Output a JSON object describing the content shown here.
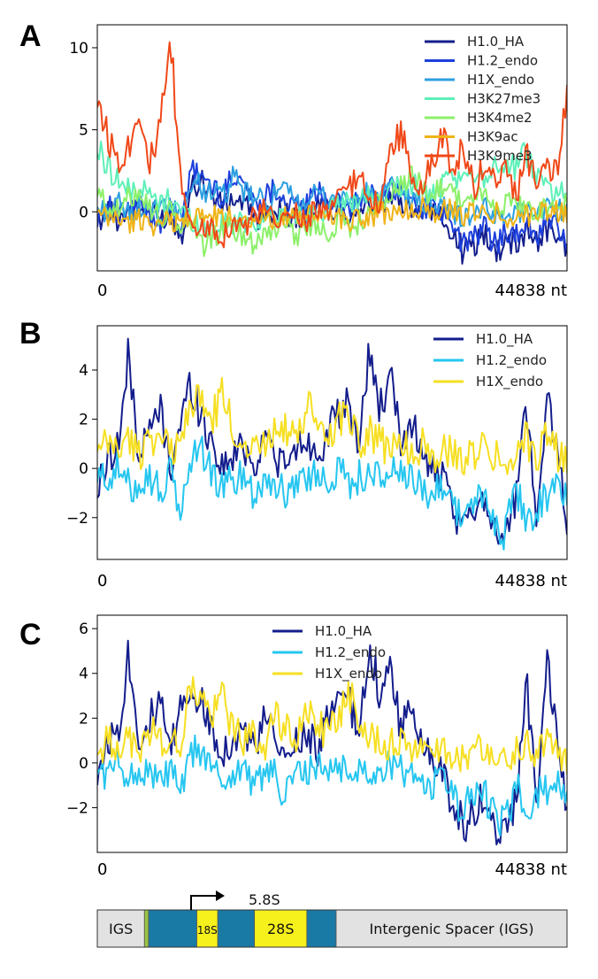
{
  "panels": [
    {
      "letter": "A",
      "chart_data": {
        "type": "line",
        "x_start_label": "0",
        "x_end_label": "44838 nt",
        "xlim": [
          0,
          44838
        ],
        "ylim": [
          -3.6,
          11.4
        ],
        "yticks": [
          0,
          5,
          10
        ],
        "ytick_labels": [
          "0",
          "5",
          "10"
        ],
        "legend_position": "top-right",
        "x": [
          0,
          1000,
          2000,
          3000,
          4000,
          5000,
          6000,
          7000,
          8000,
          9000,
          10000,
          11000,
          12000,
          13000,
          14000,
          15000,
          16000,
          17000,
          18000,
          19000,
          20000,
          21000,
          22000,
          23000,
          24000,
          25000,
          26000,
          27000,
          28000,
          29000,
          30000,
          31000,
          32000,
          33000,
          34000,
          35000,
          36000,
          37000,
          38000,
          39000,
          40000,
          41000,
          42000,
          43000,
          44000,
          44838
        ],
        "series": [
          {
            "name": "H1.0_HA",
            "color": "#131d8c",
            "values": [
              -0.8,
              0.2,
              -0.5,
              0.3,
              0.1,
              0.0,
              -0.4,
              -0.2,
              -1.5,
              1.5,
              2.0,
              1.0,
              0.3,
              0.8,
              0.5,
              -0.3,
              -0.5,
              0.2,
              0.0,
              -0.6,
              -0.3,
              0.4,
              0.2,
              0.1,
              -0.2,
              0.3,
              0.5,
              0.1,
              1.0,
              0.6,
              0.3,
              0.2,
              0.0,
              -0.5,
              -1.5,
              -2.5,
              -2.0,
              -1.2,
              -2.6,
              -1.5,
              -2.0,
              -1.0,
              -1.8,
              -1.0,
              -1.5,
              -2.2
            ]
          },
          {
            "name": "H1.2_endo",
            "color": "#1c3fdc",
            "values": [
              -0.3,
              0.5,
              -0.2,
              0.1,
              0.4,
              -0.3,
              -0.6,
              0.2,
              -1.0,
              2.5,
              2.2,
              1.5,
              0.8,
              2.5,
              1.8,
              0.5,
              1.0,
              1.5,
              0.6,
              0.2,
              0.5,
              1.2,
              0.8,
              0.4,
              0.2,
              0.6,
              1.4,
              0.7,
              1.8,
              1.0,
              0.6,
              0.3,
              0.2,
              -0.2,
              -1.0,
              -2.0,
              -1.5,
              -1.0,
              -2.0,
              -1.0,
              -1.6,
              -0.6,
              -1.5,
              -0.5,
              -1.0,
              -1.8
            ]
          },
          {
            "name": "H1X_endo",
            "color": "#2c9fe0",
            "values": [
              0.2,
              0.0,
              0.5,
              -0.2,
              0.3,
              0.1,
              0.0,
              0.4,
              -0.5,
              1.8,
              1.5,
              1.2,
              0.9,
              2.0,
              1.2,
              0.8,
              0.6,
              1.0,
              1.2,
              0.5,
              0.8,
              1.0,
              0.7,
              0.9,
              0.5,
              0.8,
              1.1,
              0.9,
              1.5,
              0.9,
              0.8,
              0.6,
              0.5,
              0.3,
              0.0,
              -0.5,
              0.0,
              0.2,
              -0.5,
              0.1,
              -0.2,
              0.3,
              0.0,
              0.4,
              0.2,
              0.0
            ]
          },
          {
            "name": "H3K27me3",
            "color": "#5ef0b8",
            "values": [
              3.8,
              2.8,
              2.0,
              1.2,
              1.5,
              1.0,
              0.5,
              0.8,
              0.2,
              -0.5,
              -0.8,
              -1.0,
              -0.6,
              -0.8,
              -0.5,
              -0.7,
              -0.4,
              -0.2,
              -0.5,
              -0.3,
              -0.1,
              0.2,
              0.0,
              0.3,
              0.5,
              0.8,
              1.0,
              0.6,
              1.2,
              1.5,
              1.8,
              1.2,
              1.0,
              1.5,
              2.0,
              1.8,
              2.5,
              2.2,
              3.0,
              2.6,
              2.8,
              3.5,
              2.5,
              1.5,
              1.0,
              1.8
            ]
          },
          {
            "name": "H3K4me2",
            "color": "#8cf06a",
            "values": [
              1.0,
              0.5,
              0.0,
              0.8,
              1.5,
              0.3,
              -0.5,
              0.0,
              -1.0,
              -0.5,
              -2.0,
              -1.5,
              -1.2,
              -1.0,
              -1.5,
              -1.8,
              -1.2,
              -1.0,
              -0.5,
              -1.4,
              -1.0,
              -0.8,
              -1.2,
              -0.5,
              -0.9,
              -0.6,
              0.0,
              0.5,
              1.0,
              1.5,
              2.0,
              1.5,
              1.0,
              1.8,
              1.2,
              0.5,
              1.0,
              0.8,
              0.3,
              0.6,
              0.2,
              0.5,
              0.0,
              0.3,
              0.1,
              0.5
            ]
          },
          {
            "name": "H3K9ac",
            "color": "#f0b418",
            "values": [
              -0.2,
              -0.5,
              -0.3,
              -0.8,
              -0.4,
              -0.6,
              -0.9,
              -0.5,
              -0.7,
              -0.3,
              -0.4,
              -0.2,
              -0.5,
              -0.1,
              -0.3,
              -0.5,
              -0.2,
              -0.4,
              -0.3,
              -0.6,
              -0.2,
              -0.4,
              -0.1,
              -0.3,
              -0.5,
              -0.2,
              -0.4,
              0.0,
              -0.2,
              0.2,
              0.0,
              0.3,
              -0.1,
              0.2,
              0.0,
              -0.3,
              0.1,
              -0.2,
              0.0,
              -0.4,
              -0.1,
              -0.3,
              0.2,
              -0.1,
              0.0,
              -0.2
            ]
          },
          {
            "name": "H3K9me3",
            "color": "#f04818",
            "values": [
              7.2,
              4.5,
              3.2,
              4.0,
              6.5,
              3.0,
              5.0,
              10.2,
              1.5,
              -0.5,
              -1.2,
              -0.8,
              -1.5,
              -0.5,
              -1.0,
              -0.3,
              0.2,
              -0.8,
              -0.4,
              0.0,
              -0.5,
              0.3,
              -0.2,
              0.8,
              1.5,
              2.0,
              1.0,
              0.5,
              3.5,
              5.0,
              2.0,
              1.5,
              3.0,
              4.5,
              2.5,
              4.0,
              1.5,
              3.0,
              2.0,
              2.5,
              1.0,
              3.5,
              1.5,
              2.5,
              3.0,
              7.0
            ]
          }
        ]
      }
    },
    {
      "letter": "B",
      "chart_data": {
        "type": "line",
        "x_start_label": "0",
        "x_end_label": "44838 nt",
        "xlim": [
          0,
          44838
        ],
        "ylim": [
          -3.7,
          5.8
        ],
        "yticks": [
          -2,
          0,
          2,
          4
        ],
        "ytick_labels": [
          "−2",
          "0",
          "2",
          "4"
        ],
        "legend_position": "top-right",
        "x": [
          0,
          1000,
          2000,
          3000,
          4000,
          5000,
          6000,
          7000,
          8000,
          9000,
          10000,
          11000,
          12000,
          13000,
          14000,
          15000,
          16000,
          17000,
          18000,
          19000,
          20000,
          21000,
          22000,
          23000,
          24000,
          25000,
          26000,
          27000,
          28000,
          29000,
          30000,
          31000,
          32000,
          33000,
          34000,
          35000,
          36000,
          37000,
          38000,
          39000,
          40000,
          41000,
          42000,
          43000,
          44000,
          44838
        ],
        "series": [
          {
            "name": "H1.0_HA",
            "color": "#131d8c",
            "values": [
              -1.0,
              0.5,
              1.0,
              4.5,
              0.5,
              1.5,
              2.5,
              0.0,
              2.0,
              3.5,
              2.0,
              1.0,
              0.0,
              0.5,
              1.0,
              0.0,
              1.5,
              0.5,
              0.0,
              0.8,
              1.2,
              0.5,
              1.5,
              2.0,
              2.5,
              1.0,
              4.8,
              2.5,
              3.5,
              1.0,
              2.0,
              0.5,
              0.0,
              -0.5,
              -2.0,
              -2.5,
              -1.5,
              -1.0,
              -2.5,
              -2.8,
              -1.0,
              2.5,
              -2.0,
              3.0,
              0.5,
              -2.0
            ]
          },
          {
            "name": "H1.2_endo",
            "color": "#26c6f0",
            "values": [
              -0.5,
              -0.3,
              0.0,
              -0.8,
              -0.5,
              -0.3,
              -1.0,
              -0.2,
              -1.8,
              0.5,
              0.8,
              -0.3,
              -0.8,
              -0.5,
              -0.2,
              -1.0,
              -0.4,
              -0.6,
              -1.2,
              -0.3,
              -0.5,
              -0.2,
              -0.4,
              0.0,
              -0.6,
              -0.3,
              -0.2,
              -0.5,
              0.0,
              -0.3,
              -0.6,
              -0.8,
              -1.0,
              -0.5,
              -1.5,
              -2.0,
              -1.2,
              -1.5,
              -2.2,
              -2.5,
              -1.0,
              -2.0,
              -1.5,
              -1.2,
              -0.5,
              -1.5
            ]
          },
          {
            "name": "H1X_endo",
            "color": "#f6df22",
            "values": [
              0.5,
              1.0,
              0.8,
              1.2,
              0.5,
              1.5,
              1.0,
              0.8,
              1.0,
              3.0,
              2.5,
              2.0,
              3.0,
              1.5,
              1.0,
              1.2,
              0.8,
              2.0,
              1.5,
              1.0,
              2.5,
              1.8,
              1.2,
              2.0,
              2.5,
              1.0,
              1.5,
              1.0,
              0.8,
              1.2,
              0.5,
              1.0,
              0.4,
              0.8,
              0.5,
              0.3,
              0.6,
              1.0,
              0.5,
              0.3,
              0.8,
              1.2,
              0.5,
              1.5,
              0.5,
              0.3
            ]
          }
        ]
      }
    },
    {
      "letter": "C",
      "chart_data": {
        "type": "line",
        "x_start_label": "0",
        "x_end_label": "44838 nt",
        "xlim": [
          0,
          44838
        ],
        "ylim": [
          -4.0,
          6.6
        ],
        "yticks": [
          -2,
          0,
          2,
          4,
          6
        ],
        "ytick_labels": [
          "−2",
          "0",
          "2",
          "4",
          "6"
        ],
        "legend_position": "top-center",
        "x": [
          0,
          1000,
          2000,
          3000,
          4000,
          5000,
          6000,
          7000,
          8000,
          9000,
          10000,
          11000,
          12000,
          13000,
          14000,
          15000,
          16000,
          17000,
          18000,
          19000,
          20000,
          21000,
          22000,
          23000,
          24000,
          25000,
          26000,
          27000,
          28000,
          29000,
          30000,
          31000,
          32000,
          33000,
          34000,
          35000,
          36000,
          37000,
          38000,
          39000,
          40000,
          41000,
          42000,
          43000,
          44000,
          44838
        ],
        "series": [
          {
            "name": "H1.0_HA",
            "color": "#131d8c",
            "values": [
              -0.5,
              1.0,
              1.5,
              5.0,
              1.0,
              2.0,
              2.5,
              0.5,
              2.5,
              3.5,
              2.5,
              1.5,
              0.5,
              1.0,
              1.5,
              0.5,
              2.0,
              1.0,
              0.0,
              1.0,
              1.5,
              0.5,
              2.0,
              2.5,
              3.0,
              1.0,
              5.5,
              3.0,
              4.0,
              1.5,
              2.5,
              1.0,
              0.0,
              -0.5,
              -2.0,
              -2.8,
              -2.0,
              -1.5,
              -3.0,
              -3.2,
              -1.5,
              3.5,
              -2.0,
              4.5,
              1.0,
              -2.5
            ]
          },
          {
            "name": "H1.2_endo",
            "color": "#26c6f0",
            "values": [
              -0.3,
              -0.5,
              0.0,
              -0.6,
              -0.5,
              -0.3,
              -1.0,
              -0.2,
              -1.5,
              0.5,
              0.5,
              -0.3,
              -0.8,
              -0.5,
              -0.2,
              -1.0,
              -0.4,
              -0.6,
              -1.5,
              -0.3,
              -0.5,
              -0.2,
              -0.4,
              0.0,
              -0.6,
              -0.3,
              -0.2,
              -0.5,
              0.0,
              -0.3,
              -0.6,
              -0.8,
              -1.0,
              -0.5,
              -1.5,
              -2.2,
              -1.2,
              -1.5,
              -2.5,
              -2.8,
              -1.0,
              -2.0,
              -1.5,
              -1.2,
              -0.5,
              -1.8
            ]
          },
          {
            "name": "H1X_endo",
            "color": "#f6df22",
            "values": [
              0.3,
              1.0,
              0.8,
              1.0,
              0.5,
              1.5,
              1.0,
              0.8,
              1.0,
              3.5,
              2.8,
              2.0,
              3.0,
              1.5,
              1.0,
              1.2,
              0.8,
              2.0,
              1.5,
              1.0,
              2.5,
              1.8,
              1.2,
              2.0,
              3.5,
              1.0,
              1.5,
              1.0,
              0.8,
              1.0,
              0.5,
              1.0,
              0.4,
              0.6,
              0.3,
              0.2,
              0.5,
              0.8,
              0.3,
              0.2,
              0.5,
              1.0,
              0.3,
              1.2,
              0.3,
              0.2
            ]
          }
        ]
      }
    }
  ],
  "map": {
    "arrow_label": "5.8S",
    "regions": [
      {
        "label": "IGS",
        "color": "#e2e2e2",
        "start": 0,
        "end": 4500
      },
      {
        "label": "",
        "color": "#9ac444",
        "start": 4500,
        "end": 4900
      },
      {
        "label": "",
        "color": "#1a7aa6",
        "start": 4900,
        "end": 9500
      },
      {
        "label": "18S",
        "color": "#f6f01c",
        "start": 9500,
        "end": 11500
      },
      {
        "label": "",
        "color": "#1a7aa6",
        "start": 11500,
        "end": 15000
      },
      {
        "label": "28S",
        "color": "#f6f01c",
        "start": 15000,
        "end": 20000
      },
      {
        "label": "",
        "color": "#1a7aa6",
        "start": 20000,
        "end": 22800
      },
      {
        "label": "Intergenic Spacer (IGS)",
        "color": "#e2e2e2",
        "start": 22800,
        "end": 44838
      }
    ]
  }
}
